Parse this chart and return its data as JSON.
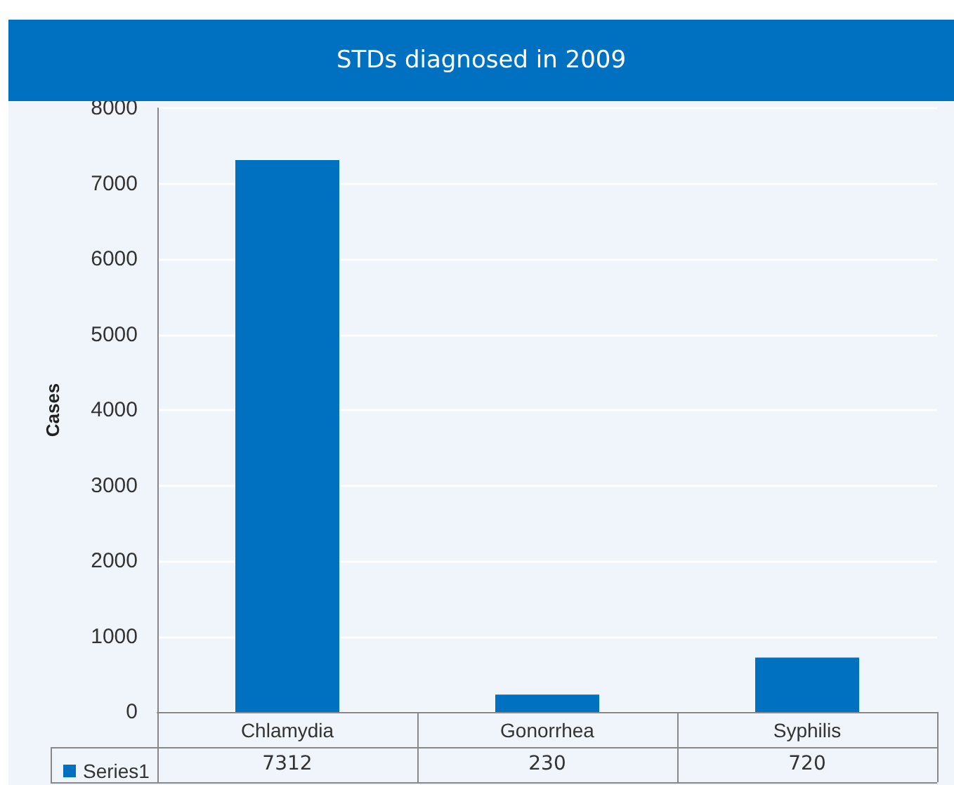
{
  "chart_data": {
    "type": "bar",
    "title": "STDs diagnosed in 2009",
    "ylabel": "Cases",
    "categories": [
      "Chlamydia",
      "Gonorrhea",
      "Syphilis"
    ],
    "series": [
      {
        "name": "Series1",
        "color": "#0070c0",
        "values": [
          7312,
          230,
          720
        ]
      }
    ],
    "ylim": [
      0,
      8000
    ],
    "yticks": [
      0,
      1000,
      2000,
      3000,
      4000,
      5000,
      6000,
      7000,
      8000
    ],
    "grid": "y",
    "legend": "bottom left",
    "data_labels": true
  }
}
